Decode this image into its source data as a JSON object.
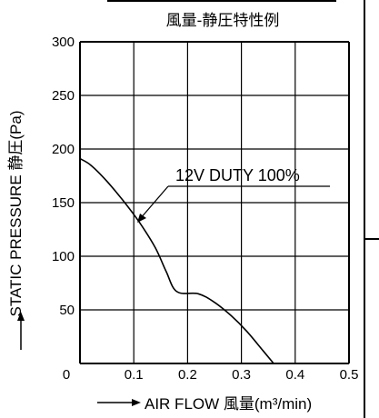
{
  "chart_data": {
    "type": "line",
    "title": "風量-静圧特性例",
    "xlabel": "AIR FLOW 風量(m³/min)",
    "ylabel": "STATIC PRESSURE 静圧(Pa)",
    "xlim": [
      0,
      0.5
    ],
    "ylim": [
      0,
      300
    ],
    "x_ticks": [
      "0",
      "0.1",
      "0.2",
      "0.3",
      "0.4",
      "0.5"
    ],
    "y_ticks": [
      "300",
      "250",
      "200",
      "150",
      "100",
      "50"
    ],
    "grid": true,
    "annotation": "12V DUTY 100%",
    "series": [
      {
        "name": "12V DUTY 100%",
        "x": [
          0,
          0.02,
          0.05,
          0.08,
          0.11,
          0.14,
          0.16,
          0.18,
          0.22,
          0.25,
          0.28,
          0.31,
          0.34,
          0.36
        ],
        "y": [
          191,
          185,
          170,
          152,
          132,
          108,
          86,
          67,
          65,
          57,
          45,
          30,
          12,
          0
        ]
      }
    ]
  }
}
